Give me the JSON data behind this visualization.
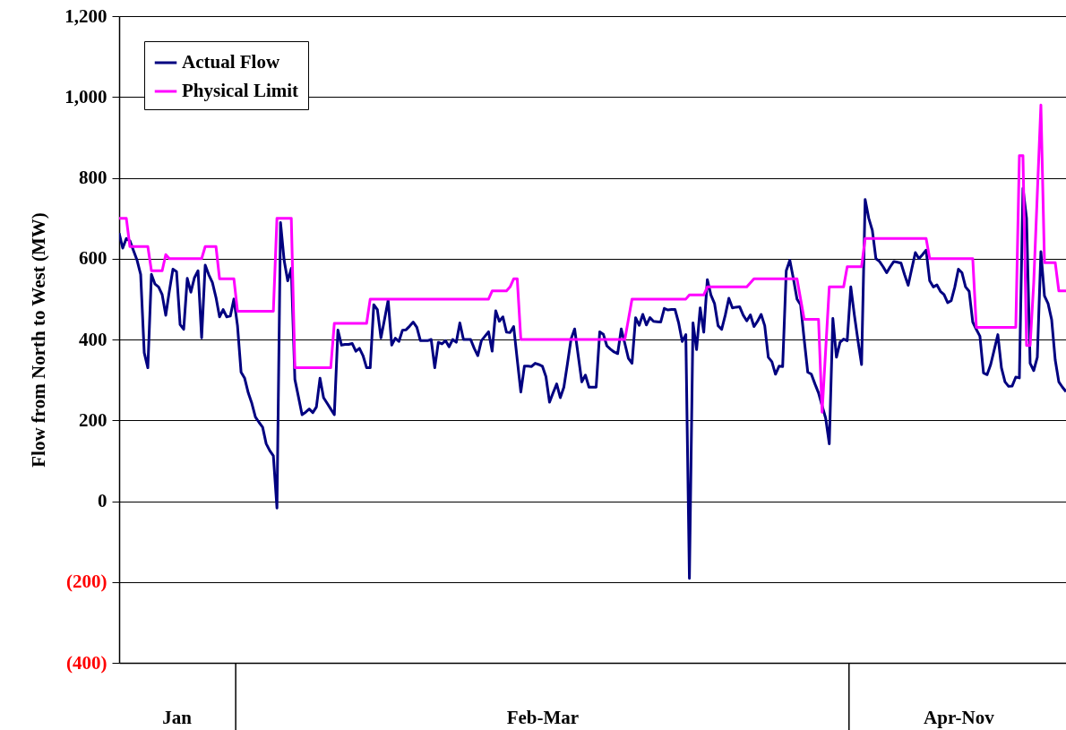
{
  "chart_data": {
    "type": "line",
    "ylabel": "Flow from North to West (MW)",
    "categories": [
      null,
      null,
      null,
      null,
      null,
      null,
      null,
      null,
      null,
      null,
      null,
      null,
      null,
      null,
      null,
      null,
      "Jan",
      null,
      null,
      null,
      null,
      null,
      null,
      null,
      null,
      null,
      null,
      null,
      null,
      null,
      null,
      null,
      null,
      null,
      null,
      null,
      null,
      null,
      null,
      null,
      null,
      null,
      null,
      null,
      null,
      null,
      null,
      null,
      null,
      null,
      null,
      null,
      null,
      null,
      null,
      null,
      null,
      null,
      null,
      null,
      null,
      null,
      null,
      null,
      null,
      null,
      null,
      null,
      null,
      null,
      null,
      null,
      null,
      null,
      null,
      null,
      null,
      null,
      null,
      null,
      null,
      null,
      null,
      null,
      null,
      null,
      null,
      null,
      null,
      null,
      null,
      null,
      null,
      null,
      null,
      null,
      null,
      null,
      null,
      null,
      null,
      null,
      null,
      null,
      null,
      null,
      null,
      null,
      null,
      null,
      null,
      null,
      null,
      null,
      null,
      null,
      null,
      null,
      "Feb-Mar",
      null,
      null,
      null,
      null,
      null,
      null,
      null,
      null,
      null,
      null,
      null,
      null,
      null,
      null,
      null,
      null,
      null,
      null,
      null,
      null,
      null,
      null,
      null,
      null,
      null,
      null,
      null,
      null,
      null,
      null,
      null,
      null,
      null,
      null,
      null,
      null,
      null,
      null,
      null,
      null,
      null,
      null,
      null,
      null,
      null,
      null,
      null,
      null,
      null,
      null,
      null,
      null,
      null,
      null,
      null,
      null,
      null,
      null,
      null,
      null,
      null,
      null,
      null,
      null,
      null,
      null,
      null,
      null,
      null,
      null,
      null,
      null,
      null,
      null,
      null,
      null,
      null,
      null,
      null,
      null,
      null,
      null,
      null,
      null,
      null,
      null,
      null,
      null,
      null,
      null,
      null,
      null,
      null,
      null,
      null,
      null,
      null,
      null,
      null,
      null,
      null,
      null,
      null,
      null,
      null,
      null,
      null,
      null,
      null,
      null,
      null,
      null,
      null,
      null,
      null,
      "Apr-Nov",
      null,
      null,
      null,
      null,
      null,
      null,
      null,
      null,
      null,
      null,
      null,
      null,
      null,
      null,
      null,
      null,
      null,
      null,
      null,
      null,
      null,
      null,
      null,
      null,
      null,
      null,
      null,
      null,
      null,
      null
    ],
    "ylim": [
      -400,
      1200
    ],
    "yticks": [
      {
        "value": -400,
        "label": "(400)"
      },
      {
        "value": -200,
        "label": "(200)"
      },
      0,
      200,
      400,
      600,
      800,
      {
        "value": 1000,
        "label": "1,000"
      },
      {
        "value": 1200,
        "label": "1,200"
      }
    ],
    "grid": "y",
    "legend": "top left",
    "line_style": "solid",
    "series": [
      {
        "name": "Actual Flow",
        "color": "#000080",
        "values": [
          663,
          626,
          650,
          644,
          620,
          596,
          561,
          367,
          330,
          561,
          537,
          530,
          511,
          460,
          520,
          574,
          568,
          437,
          425,
          551,
          517,
          553,
          570,
          404,
          584,
          560,
          541,
          504,
          456,
          474,
          456,
          458,
          500,
          434,
          319,
          304,
          268,
          242,
          208,
          195,
          183,
          142,
          125,
          112,
          -17,
          689,
          596,
          545,
          576,
          301,
          258,
          214,
          220,
          228,
          219,
          233,
          304,
          256,
          242,
          228,
          214,
          423,
          386,
          388,
          388,
          390,
          371,
          378,
          360,
          330,
          330,
          486,
          474,
          404,
          450,
          497,
          386,
          403,
          395,
          423,
          424,
          433,
          443,
          430,
          397,
          397,
          397,
          400,
          330,
          393,
          389,
          397,
          382,
          400,
          393,
          441,
          400,
          400,
          400,
          378,
          360,
          397,
          408,
          419,
          371,
          471,
          445,
          456,
          418,
          417,
          432,
          350,
          270,
          334,
          334,
          333,
          341,
          338,
          334,
          308,
          245,
          268,
          290,
          256,
          282,
          340,
          401,
          426,
          360,
          295,
          312,
          282,
          282,
          282,
          419,
          413,
          384,
          376,
          369,
          365,
          426,
          390,
          353,
          341,
          454,
          435,
          462,
          436,
          454,
          445,
          444,
          443,
          477,
          473,
          474,
          474,
          441,
          395,
          412,
          -191,
          441,
          375,
          478,
          418,
          548,
          510,
          489,
          434,
          425,
          460,
          502,
          478,
          480,
          481,
          460,
          446,
          461,
          432,
          445,
          462,
          434,
          356,
          345,
          314,
          334,
          333,
          570,
          596,
          550,
          500,
          486,
          400,
          319,
          314,
          290,
          268,
          236,
          205,
          142,
          452,
          356,
          393,
          401,
          397,
          530,
          460,
          397,
          338,
          746,
          700,
          670,
          600,
          593,
          580,
          565,
          580,
          593,
          591,
          589,
          560,
          534,
          575,
          615,
          600,
          610,
          621,
          545,
          530,
          535,
          519,
          511,
          491,
          496,
          530,
          574,
          565,
          530,
          519,
          443,
          425,
          408,
          317,
          313,
          338,
          375,
          412,
          330,
          295,
          284,
          285,
          307,
          305,
          774,
          700,
          341,
          323,
          356,
          617,
          508,
          489,
          449,
          349,
          295,
          282,
          271
        ]
      },
      {
        "name": "Physical Limit",
        "color": "#ff00ff",
        "values": [
          700,
          700,
          700,
          630,
          630,
          630,
          630,
          630,
          630,
          570,
          570,
          570,
          570,
          610,
          600,
          600,
          600,
          600,
          600,
          600,
          600,
          600,
          600,
          600,
          630,
          630,
          630,
          630,
          550,
          550,
          550,
          550,
          550,
          470,
          470,
          470,
          470,
          470,
          470,
          470,
          470,
          470,
          470,
          470,
          700,
          700,
          700,
          700,
          700,
          330,
          330,
          330,
          330,
          330,
          330,
          330,
          330,
          330,
          330,
          330,
          440,
          440,
          440,
          440,
          440,
          440,
          440,
          440,
          440,
          440,
          500,
          500,
          500,
          500,
          500,
          500,
          500,
          500,
          500,
          500,
          500,
          500,
          500,
          500,
          500,
          500,
          500,
          500,
          500,
          500,
          500,
          500,
          500,
          500,
          500,
          500,
          500,
          500,
          500,
          500,
          500,
          500,
          500,
          500,
          520,
          520,
          520,
          520,
          520,
          530,
          550,
          550,
          400,
          400,
          400,
          400,
          400,
          400,
          400,
          400,
          400,
          400,
          400,
          400,
          400,
          400,
          400,
          400,
          400,
          400,
          400,
          400,
          400,
          400,
          400,
          400,
          400,
          400,
          400,
          400,
          400,
          400,
          450,
          500,
          500,
          500,
          500,
          500,
          500,
          500,
          500,
          500,
          500,
          500,
          500,
          500,
          500,
          500,
          500,
          510,
          510,
          510,
          510,
          510,
          530,
          530,
          530,
          530,
          530,
          530,
          530,
          530,
          530,
          530,
          530,
          530,
          540,
          550,
          550,
          550,
          550,
          550,
          550,
          550,
          550,
          550,
          550,
          550,
          550,
          550,
          500,
          450,
          450,
          450,
          450,
          450,
          220,
          375,
          530,
          530,
          530,
          530,
          530,
          580,
          580,
          580,
          580,
          580,
          650,
          650,
          650,
          650,
          650,
          650,
          650,
          650,
          650,
          650,
          650,
          650,
          650,
          650,
          650,
          650,
          650,
          650,
          600,
          600,
          600,
          600,
          600,
          600,
          600,
          600,
          600,
          600,
          600,
          600,
          600,
          430,
          430,
          430,
          430,
          430,
          430,
          430,
          430,
          430,
          430,
          430,
          430,
          855,
          855,
          385,
          385,
          540,
          760,
          980,
          590,
          590,
          590,
          590,
          520,
          520,
          520
        ]
      }
    ]
  }
}
